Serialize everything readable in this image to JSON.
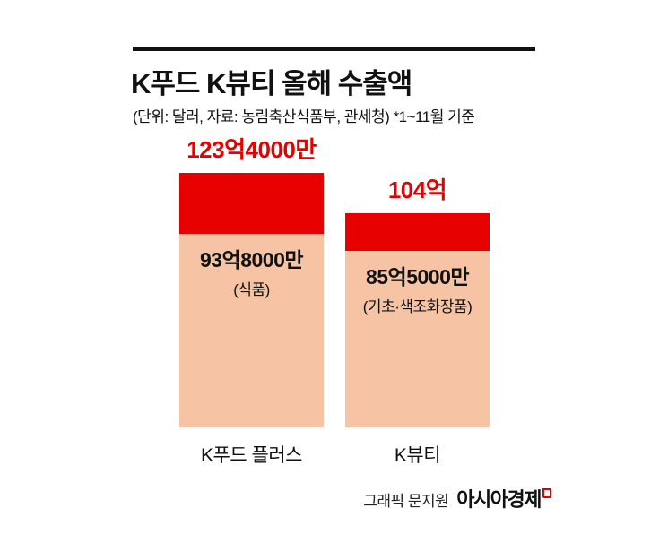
{
  "header": {
    "title": "K푸드 K뷰티 올해 수출액",
    "subtitle": "(단위: 달러, 자료: 농림축산식품부, 관세청) *1~11월 기준"
  },
  "chart_data": {
    "type": "bar",
    "title": "K푸드 K뷰티 올해 수출액",
    "unit": "달러",
    "note": "*1~11월 기준",
    "source": "농림축산식품부, 관세청",
    "ylim": [
      0,
      123.4
    ],
    "categories": [
      "K푸드 플러스",
      "K뷰티"
    ],
    "bars": [
      {
        "category": "K푸드 플러스",
        "total_value": 123.4,
        "total_label": "123억4000만",
        "segment_value": 93.8,
        "segment_label": "93억8000만",
        "segment_sublabel": "(식품)"
      },
      {
        "category": "K뷰티",
        "total_value": 104,
        "total_label": "104억",
        "segment_value": 85.5,
        "segment_label": "85억5000만",
        "segment_sublabel": "(기초·색조화장품)"
      }
    ],
    "legend": "none",
    "grid": false,
    "colors": {
      "total_segment": "#e60000",
      "bottom_segment": "#f6c4a4",
      "value_label": "#e60000",
      "rule": "#111111"
    }
  },
  "footer": {
    "credit": "그래픽 문지원",
    "brand": "아시아경제",
    "brand_mark_icon": "speech-bubble"
  }
}
